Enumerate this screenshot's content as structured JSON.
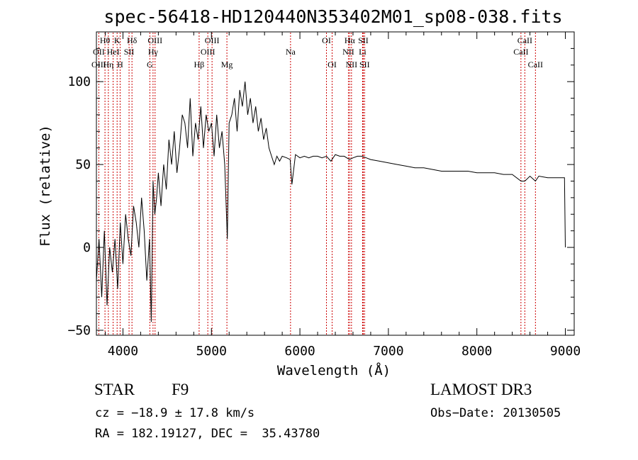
{
  "chart_data": {
    "type": "line",
    "title": "spec-56418-HD120440N353402M01_sp08-038.fits",
    "xlabel": "Wavelength (Å)",
    "ylabel": "Flux (relative)",
    "xlim": [
      3700,
      9100
    ],
    "ylim": [
      -53,
      130
    ],
    "xticks": [
      4000,
      5000,
      6000,
      7000,
      8000,
      9000
    ],
    "yticks": [
      -50,
      0,
      50,
      100
    ],
    "grid": false,
    "series": [
      {
        "x": [
          3700,
          3730,
          3760,
          3790,
          3820,
          3850,
          3880,
          3910,
          3940,
          3970,
          4000,
          4030,
          4060,
          4090,
          4120,
          4150,
          4180,
          4210,
          4240,
          4270,
          4300,
          4320,
          4340,
          4360,
          4380,
          4400,
          4430,
          4460,
          4490,
          4520,
          4550,
          4580,
          4610,
          4640,
          4670,
          4700,
          4730,
          4760,
          4790,
          4820,
          4850,
          4880,
          4910,
          4940,
          4970,
          5000,
          5030,
          5060,
          5090,
          5120,
          5150,
          5180,
          5200,
          5230,
          5260,
          5290,
          5320,
          5350,
          5380,
          5410,
          5440,
          5470,
          5500,
          5530,
          5560,
          5590,
          5620,
          5650,
          5680,
          5710,
          5740,
          5770,
          5800,
          5850,
          5890,
          5910,
          5950,
          6000,
          6050,
          6100,
          6150,
          6200,
          6250,
          6300,
          6350,
          6400,
          6450,
          6500,
          6560,
          6600,
          6650,
          6700,
          6750,
          6800,
          6900,
          7000,
          7100,
          7200,
          7300,
          7400,
          7500,
          7600,
          7700,
          7800,
          7900,
          8000,
          8100,
          8200,
          8300,
          8400,
          8498,
          8542,
          8600,
          8662,
          8700,
          8800,
          8900,
          8990,
          9000
        ],
        "y": [
          -20,
          5,
          -30,
          10,
          -35,
          0,
          -15,
          5,
          -25,
          15,
          -10,
          20,
          5,
          -5,
          25,
          15,
          0,
          30,
          10,
          -20,
          5,
          -45,
          40,
          20,
          30,
          45,
          25,
          50,
          35,
          65,
          50,
          70,
          45,
          60,
          80,
          75,
          60,
          90,
          55,
          75,
          65,
          85,
          60,
          80,
          70,
          75,
          55,
          80,
          60,
          70,
          50,
          5,
          75,
          80,
          90,
          70,
          95,
          85,
          100,
          80,
          90,
          75,
          85,
          70,
          78,
          65,
          72,
          60,
          55,
          50,
          55,
          52,
          55,
          54,
          53,
          38,
          56,
          54,
          55,
          54,
          55,
          55,
          54,
          55,
          52,
          56,
          55,
          55,
          53,
          54,
          55,
          55,
          54,
          53,
          52,
          51,
          50,
          49,
          48,
          48,
          47,
          46,
          46,
          46,
          46,
          45,
          45,
          45,
          44,
          44,
          40,
          40,
          43,
          40,
          43,
          42,
          42,
          42,
          0
        ]
      }
    ],
    "lines": [
      {
        "label": "Hθ",
        "x": 3797,
        "row": 0
      },
      {
        "label": "OII",
        "x": 3727,
        "row": 1
      },
      {
        "label": "OIII",
        "x": 3727,
        "row": 2
      },
      {
        "label": "K",
        "x": 3934,
        "row": 0
      },
      {
        "label": "HeI",
        "x": 3889,
        "row": 1
      },
      {
        "label": "Hη",
        "x": 3835,
        "row": 2
      },
      {
        "label": "SII",
        "x": 4069,
        "row": 1
      },
      {
        "label": "H",
        "x": 3968,
        "row": 2
      },
      {
        "label": "Hδ",
        "x": 4102,
        "row": 0
      },
      {
        "label": "OIII",
        "x": 4363,
        "row": 0
      },
      {
        "label": "Hγ",
        "x": 4340,
        "row": 1
      },
      {
        "label": "G",
        "x": 4304,
        "row": 2
      },
      {
        "label": "OIII",
        "x": 5007,
        "row": 0
      },
      {
        "label": "OIII",
        "x": 4959,
        "row": 1
      },
      {
        "label": "Hβ",
        "x": 4861,
        "row": 2
      },
      {
        "label": "Mg",
        "x": 5175,
        "row": 2
      },
      {
        "label": "Na",
        "x": 5894,
        "row": 1
      },
      {
        "label": "OI",
        "x": 6300,
        "row": 0
      },
      {
        "label": "OI",
        "x": 6364,
        "row": 2
      },
      {
        "label": "Hα",
        "x": 6563,
        "row": 0
      },
      {
        "label": "SII",
        "x": 6716,
        "row": 0
      },
      {
        "label": "NII",
        "x": 6548,
        "row": 1
      },
      {
        "label": "Li",
        "x": 6708,
        "row": 1
      },
      {
        "label": "NII",
        "x": 6583,
        "row": 2
      },
      {
        "label": "SII",
        "x": 6731,
        "row": 2
      },
      {
        "label": "CaII",
        "x": 8542,
        "row": 0
      },
      {
        "label": "CaII",
        "x": 8498,
        "row": 1
      },
      {
        "label": "CaII",
        "x": 8662,
        "row": 2
      }
    ]
  },
  "info": {
    "class_label": "STAR",
    "subclass": "F9",
    "survey": "LAMOST DR3",
    "cz": "cz = −18.9 ± 17.8 km/s",
    "obs_date": "Obs−Date: 20130505",
    "coords": "RA = 182.19127, DEC =  35.43780"
  },
  "colors": {
    "spectrum": "#000000",
    "line_markers": "#cc0000",
    "axes": "#000000"
  }
}
